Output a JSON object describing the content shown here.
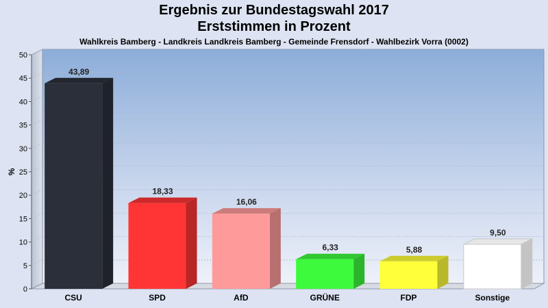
{
  "title_line1": "Ergebnis zur Bundestagswahl 2017",
  "title_line2": "Erststimmen in Prozent",
  "subtitle": "Wahlkreis Bamberg - Landkreis Landkreis Bamberg - Gemeinde Frensdorf - Wahlbezirk Vorra (0002)",
  "chart_data": {
    "type": "bar",
    "title": "Ergebnis zur Bundestagswahl 2017 Erststimmen in Prozent",
    "xlabel": "",
    "ylabel": "%",
    "ylim": [
      0,
      50
    ],
    "yticks": [
      0,
      5,
      10,
      15,
      20,
      25,
      30,
      35,
      40,
      45,
      50
    ],
    "grid": true,
    "categories": [
      "CSU",
      "SPD",
      "AfD",
      "GRÜNE",
      "FDP",
      "Sonstige"
    ],
    "values": [
      43.89,
      18.33,
      16.06,
      6.33,
      5.88,
      9.5
    ],
    "value_labels": [
      "43,89",
      "18,33",
      "16,06",
      "6,33",
      "5,88",
      "9,50"
    ],
    "colors": [
      "#2b2f3a",
      "#ff3535",
      "#ff9a9a",
      "#3dfa3d",
      "#ffff3a",
      "#ffffff"
    ]
  }
}
